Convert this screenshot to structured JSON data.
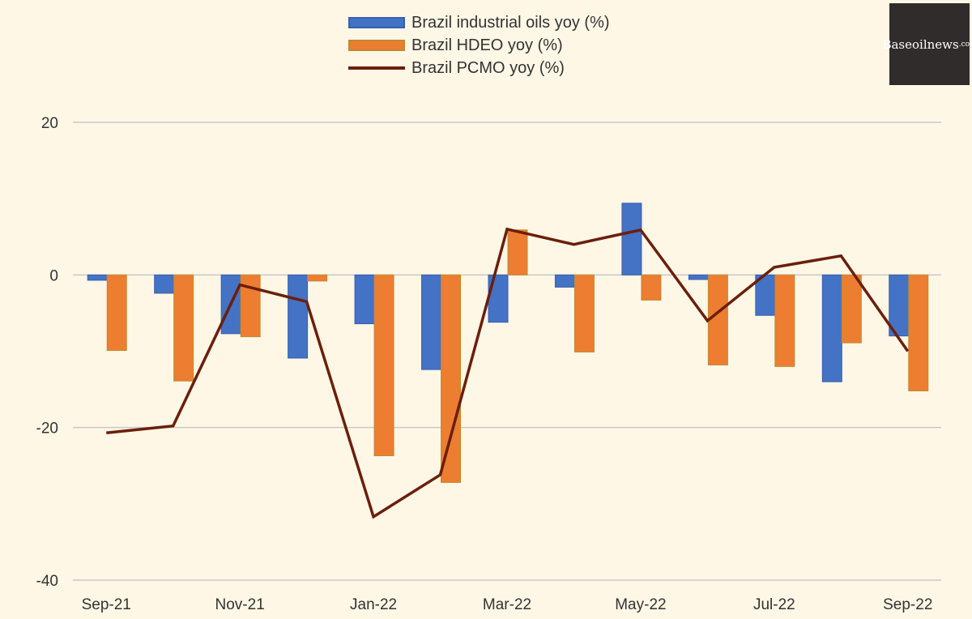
{
  "chart_data": {
    "type": "bar",
    "categories": [
      "Sep-21",
      "Oct-21",
      "Nov-21",
      "Dec-21",
      "Jan-22",
      "Feb-22",
      "Mar-22",
      "Apr-22",
      "May-22",
      "Jun-22",
      "Jul-22",
      "Aug-22",
      "Sep-22"
    ],
    "x_tick_labels": [
      "Sep-21",
      "Nov-21",
      "Jan-22",
      "Mar-22",
      "May-22",
      "Jul-22",
      "Sep-22"
    ],
    "series": [
      {
        "name": "Brazil industrial oils yoy (%)",
        "type": "bar",
        "color": "#4472c4",
        "values": [
          -0.7,
          -2.4,
          -7.7,
          -10.9,
          -6.4,
          -12.4,
          -6.2,
          -1.6,
          9.4,
          -0.6,
          -5.3,
          -14.0,
          -8.0
        ]
      },
      {
        "name": "Brazil HDEO yoy (%)",
        "type": "bar",
        "color": "#ed7d31",
        "values": [
          -9.9,
          -13.9,
          -8.1,
          -0.8,
          -23.7,
          -27.2,
          5.9,
          -10.1,
          -3.3,
          -11.8,
          -12.0,
          -8.9,
          -15.2
        ]
      },
      {
        "name": "Brazil PCMO yoy (%)",
        "type": "line",
        "color": "#6b1f0c",
        "values": [
          -20.7,
          -19.8,
          -1.3,
          -3.5,
          -31.7,
          -26.2,
          6.0,
          4.0,
          5.9,
          -6.0,
          1.0,
          2.5,
          -10.0
        ]
      }
    ],
    "y_ticks": [
      20,
      0,
      -20,
      -40
    ],
    "ylim": [
      -40,
      20
    ],
    "grid": true,
    "legend": "top-center"
  },
  "watermark": {
    "main": "Baseoilnews",
    "suffix": ".com"
  }
}
